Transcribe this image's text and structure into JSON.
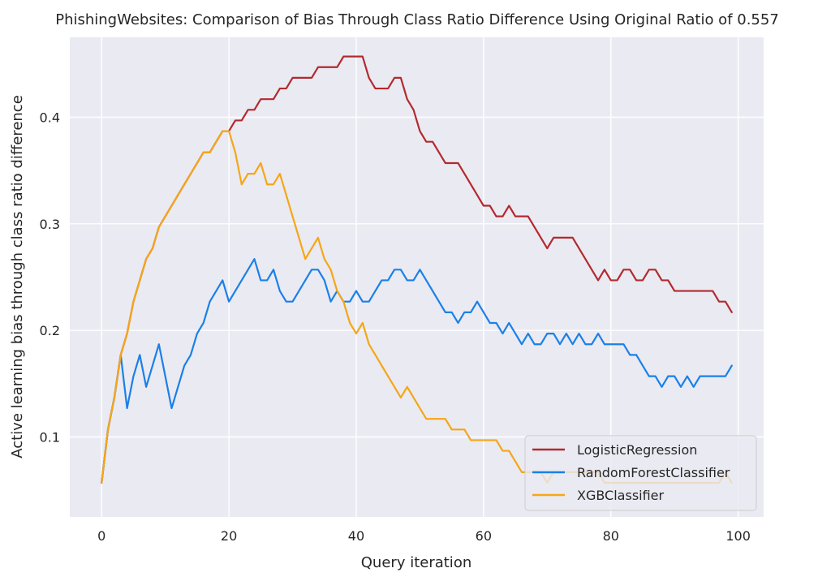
{
  "chart_data": {
    "type": "line",
    "title": "PhishingWebsites: Comparison of Bias Through Class Ratio Difference Using Original Ratio of 0.557",
    "xlabel": "Query iteration",
    "ylabel": "Active learning bias through class ratio difference",
    "xlim": [
      -5,
      104
    ],
    "ylim": [
      0.025,
      0.475
    ],
    "xticks": [
      0,
      20,
      40,
      60,
      80,
      100
    ],
    "yticks": [
      0.1,
      0.2,
      0.3,
      0.4
    ],
    "grid": true,
    "legend_position": "lower-right",
    "background_color": "#eaeaf2",
    "series": [
      {
        "name": "LogisticRegression",
        "color": "#b22a2e",
        "values": [
          0.057,
          0.107,
          0.137,
          0.177,
          0.197,
          0.227,
          0.247,
          0.267,
          0.277,
          0.297,
          0.307,
          0.317,
          0.327,
          0.337,
          0.347,
          0.357,
          0.367,
          0.367,
          0.377,
          0.387,
          0.387,
          0.397,
          0.397,
          0.407,
          0.407,
          0.417,
          0.417,
          0.417,
          0.427,
          0.427,
          0.437,
          0.437,
          0.437,
          0.437,
          0.447,
          0.447,
          0.447,
          0.447,
          0.457,
          0.457,
          0.457,
          0.457,
          0.437,
          0.427,
          0.427,
          0.427,
          0.437,
          0.437,
          0.417,
          0.407,
          0.387,
          0.377,
          0.377,
          0.367,
          0.357,
          0.357,
          0.357,
          0.347,
          0.337,
          0.327,
          0.317,
          0.317,
          0.307,
          0.307,
          0.317,
          0.307,
          0.307,
          0.307,
          0.297,
          0.287,
          0.277,
          0.287,
          0.287,
          0.287,
          0.287,
          0.277,
          0.267,
          0.257,
          0.247,
          0.257,
          0.247,
          0.247,
          0.257,
          0.257,
          0.247,
          0.247,
          0.257,
          0.257,
          0.247,
          0.247,
          0.237,
          0.237,
          0.237,
          0.237,
          0.237,
          0.237,
          0.237,
          0.227,
          0.227,
          0.217
        ]
      },
      {
        "name": "RandomForestClassifier",
        "color": "#1a80e8",
        "values": [
          0.057,
          0.107,
          0.137,
          0.177,
          0.127,
          0.157,
          0.177,
          0.147,
          0.167,
          0.187,
          0.157,
          0.127,
          0.147,
          0.167,
          0.177,
          0.197,
          0.207,
          0.227,
          0.237,
          0.247,
          0.227,
          0.237,
          0.247,
          0.257,
          0.267,
          0.247,
          0.247,
          0.257,
          0.237,
          0.227,
          0.227,
          0.237,
          0.247,
          0.257,
          0.257,
          0.247,
          0.227,
          0.237,
          0.227,
          0.227,
          0.237,
          0.227,
          0.227,
          0.237,
          0.247,
          0.247,
          0.257,
          0.257,
          0.247,
          0.247,
          0.257,
          0.247,
          0.237,
          0.227,
          0.217,
          0.217,
          0.207,
          0.217,
          0.217,
          0.227,
          0.217,
          0.207,
          0.207,
          0.197,
          0.207,
          0.197,
          0.187,
          0.197,
          0.187,
          0.187,
          0.197,
          0.197,
          0.187,
          0.197,
          0.187,
          0.197,
          0.187,
          0.187,
          0.197,
          0.187,
          0.187,
          0.187,
          0.187,
          0.177,
          0.177,
          0.167,
          0.157,
          0.157,
          0.147,
          0.157,
          0.157,
          0.147,
          0.157,
          0.147,
          0.157,
          0.157,
          0.157,
          0.157,
          0.157,
          0.167
        ]
      },
      {
        "name": "XGBClassifier",
        "color": "#f5a617",
        "values": [
          0.057,
          0.107,
          0.137,
          0.177,
          0.197,
          0.227,
          0.247,
          0.267,
          0.277,
          0.297,
          0.307,
          0.317,
          0.327,
          0.337,
          0.347,
          0.357,
          0.367,
          0.367,
          0.377,
          0.387,
          0.387,
          0.367,
          0.337,
          0.347,
          0.347,
          0.357,
          0.337,
          0.337,
          0.347,
          0.327,
          0.307,
          0.287,
          0.267,
          0.277,
          0.287,
          0.267,
          0.257,
          0.237,
          0.227,
          0.207,
          0.197,
          0.207,
          0.187,
          0.177,
          0.167,
          0.157,
          0.147,
          0.137,
          0.147,
          0.137,
          0.127,
          0.117,
          0.117,
          0.117,
          0.117,
          0.107,
          0.107,
          0.107,
          0.097,
          0.097,
          0.097,
          0.097,
          0.097,
          0.087,
          0.087,
          0.077,
          0.067,
          0.067,
          0.067,
          0.067,
          0.057,
          0.067,
          0.067,
          0.067,
          0.067,
          0.067,
          0.067,
          0.067,
          0.067,
          0.057,
          0.057,
          0.057,
          0.057,
          0.057,
          0.057,
          0.057,
          0.057,
          0.057,
          0.057,
          0.057,
          0.057,
          0.057,
          0.057,
          0.057,
          0.057,
          0.057,
          0.057,
          0.057,
          0.067,
          0.057
        ]
      }
    ]
  }
}
